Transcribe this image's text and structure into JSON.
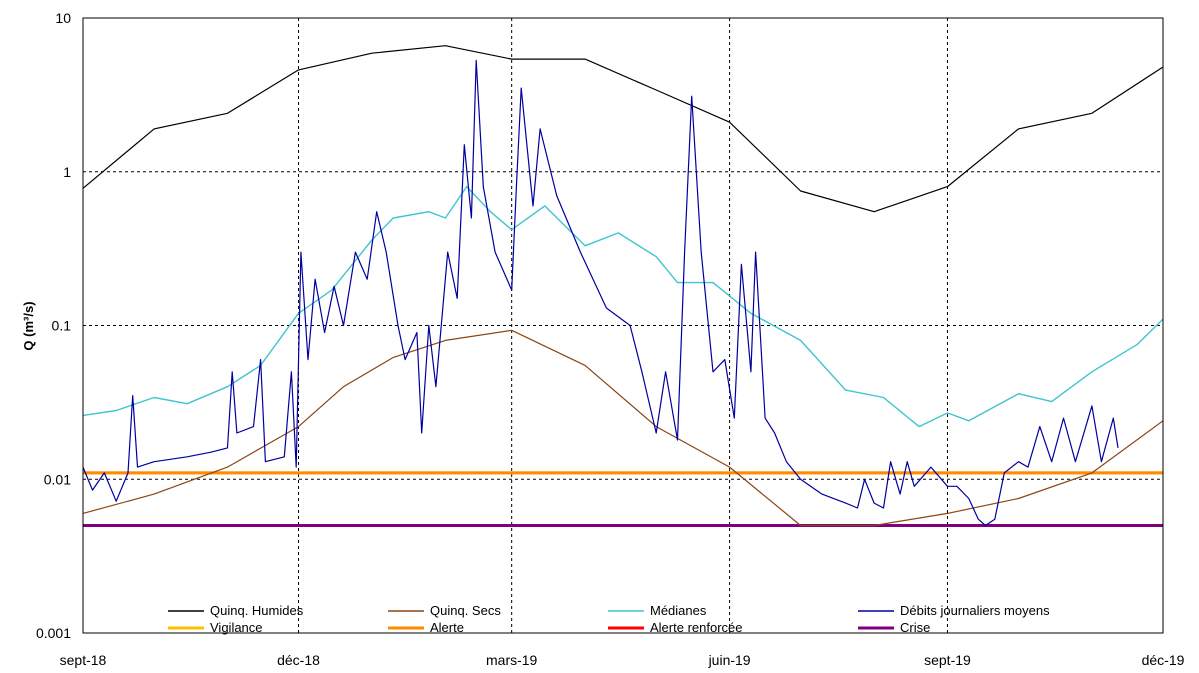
{
  "chart_data": {
    "type": "line",
    "title": "",
    "xlabel": "",
    "ylabel": "Q (m³/s)",
    "y_scale": "log",
    "ylim": [
      0.001,
      10
    ],
    "xlim": [
      "2018-09-01",
      "2019-12-01"
    ],
    "grid": true,
    "legend_position": "bottom",
    "y_ticks": [
      {
        "value": 10,
        "label": "10"
      },
      {
        "value": 1,
        "label": "1"
      },
      {
        "value": 0.1,
        "label": "0.1"
      },
      {
        "value": 0.01,
        "label": "0.01"
      },
      {
        "value": 0.001,
        "label": "0.001"
      }
    ],
    "x_ticks": [
      {
        "value": "2018-09-01",
        "label": "sept-18"
      },
      {
        "value": "2018-12-01",
        "label": "déc-18"
      },
      {
        "value": "2019-03-01",
        "label": "mars-19"
      },
      {
        "value": "2019-06-01",
        "label": "juin-19"
      },
      {
        "value": "2019-09-01",
        "label": "sept-19"
      },
      {
        "value": "2019-12-01",
        "label": "déc-19"
      }
    ],
    "series": [
      {
        "name": "Quinq. Humides",
        "color": "#000000",
        "width": 1.2,
        "points": [
          [
            "2018-09-01",
            0.78
          ],
          [
            "2018-10-01",
            1.9
          ],
          [
            "2018-11-01",
            2.4
          ],
          [
            "2018-12-01",
            4.6
          ],
          [
            "2019-01-01",
            5.9
          ],
          [
            "2019-02-01",
            6.6
          ],
          [
            "2019-03-01",
            5.4
          ],
          [
            "2019-04-01",
            5.4
          ],
          [
            "2019-05-01",
            3.4
          ],
          [
            "2019-06-01",
            2.1
          ],
          [
            "2019-07-01",
            0.75
          ],
          [
            "2019-08-01",
            0.55
          ],
          [
            "2019-09-01",
            0.8
          ],
          [
            "2019-10-01",
            1.9
          ],
          [
            "2019-11-01",
            2.4
          ],
          [
            "2019-12-01",
            4.8
          ]
        ]
      },
      {
        "name": "Quinq. Secs",
        "color": "#8b4513",
        "width": 1.2,
        "points": [
          [
            "2018-09-01",
            0.006
          ],
          [
            "2018-10-01",
            0.008
          ],
          [
            "2018-11-01",
            0.012
          ],
          [
            "2018-12-01",
            0.022
          ],
          [
            "2018-12-20",
            0.04
          ],
          [
            "2019-01-10",
            0.062
          ],
          [
            "2019-02-01",
            0.08
          ],
          [
            "2019-03-01",
            0.093
          ],
          [
            "2019-04-01",
            0.055
          ],
          [
            "2019-05-01",
            0.022
          ],
          [
            "2019-06-01",
            0.012
          ],
          [
            "2019-07-01",
            0.005
          ],
          [
            "2019-08-01",
            0.005
          ],
          [
            "2019-09-01",
            0.006
          ],
          [
            "2019-10-01",
            0.0075
          ],
          [
            "2019-11-01",
            0.011
          ],
          [
            "2019-12-01",
            0.024
          ]
        ]
      },
      {
        "name": "Médianes",
        "color": "#40c4d0",
        "width": 1.4,
        "points": [
          [
            "2018-09-01",
            0.026
          ],
          [
            "2018-09-15",
            0.028
          ],
          [
            "2018-10-01",
            0.034
          ],
          [
            "2018-10-15",
            0.031
          ],
          [
            "2018-11-01",
            0.04
          ],
          [
            "2018-11-15",
            0.055
          ],
          [
            "2018-12-01",
            0.12
          ],
          [
            "2018-12-15",
            0.17
          ],
          [
            "2019-01-01",
            0.36
          ],
          [
            "2019-01-10",
            0.5
          ],
          [
            "2019-01-25",
            0.55
          ],
          [
            "2019-02-01",
            0.5
          ],
          [
            "2019-02-10",
            0.8
          ],
          [
            "2019-02-20",
            0.55
          ],
          [
            "2019-03-01",
            0.42
          ],
          [
            "2019-03-15",
            0.6
          ],
          [
            "2019-04-01",
            0.33
          ],
          [
            "2019-04-15",
            0.4
          ],
          [
            "2019-05-01",
            0.28
          ],
          [
            "2019-05-10",
            0.19
          ],
          [
            "2019-05-25",
            0.19
          ],
          [
            "2019-06-10",
            0.12
          ],
          [
            "2019-07-01",
            0.08
          ],
          [
            "2019-07-20",
            0.038
          ],
          [
            "2019-08-05",
            0.034
          ],
          [
            "2019-08-20",
            0.022
          ],
          [
            "2019-09-01",
            0.027
          ],
          [
            "2019-09-10",
            0.024
          ],
          [
            "2019-10-01",
            0.036
          ],
          [
            "2019-10-15",
            0.032
          ],
          [
            "2019-11-01",
            0.05
          ],
          [
            "2019-11-20",
            0.075
          ],
          [
            "2019-12-01",
            0.11
          ]
        ]
      },
      {
        "name": "Débits journaliers moyens",
        "color": "#0000a0",
        "width": 1.2,
        "points": [
          [
            "2018-09-01",
            0.012
          ],
          [
            "2018-09-05",
            0.0085
          ],
          [
            "2018-09-10",
            0.011
          ],
          [
            "2018-09-15",
            0.0072
          ],
          [
            "2018-09-20",
            0.011
          ],
          [
            "2018-09-22",
            0.035
          ],
          [
            "2018-09-24",
            0.012
          ],
          [
            "2018-10-01",
            0.013
          ],
          [
            "2018-10-15",
            0.014
          ],
          [
            "2018-10-25",
            0.015
          ],
          [
            "2018-11-01",
            0.016
          ],
          [
            "2018-11-03",
            0.05
          ],
          [
            "2018-11-05",
            0.02
          ],
          [
            "2018-11-12",
            0.022
          ],
          [
            "2018-11-15",
            0.06
          ],
          [
            "2018-11-17",
            0.013
          ],
          [
            "2018-11-25",
            0.014
          ],
          [
            "2018-11-28",
            0.05
          ],
          [
            "2018-11-30",
            0.012
          ],
          [
            "2018-12-02",
            0.3
          ],
          [
            "2018-12-05",
            0.06
          ],
          [
            "2018-12-08",
            0.2
          ],
          [
            "2018-12-12",
            0.09
          ],
          [
            "2018-12-16",
            0.18
          ],
          [
            "2018-12-20",
            0.1
          ],
          [
            "2018-12-25",
            0.3
          ],
          [
            "2018-12-30",
            0.2
          ],
          [
            "2019-01-03",
            0.55
          ],
          [
            "2019-01-07",
            0.3
          ],
          [
            "2019-01-12",
            0.1
          ],
          [
            "2019-01-15",
            0.06
          ],
          [
            "2019-01-20",
            0.09
          ],
          [
            "2019-01-22",
            0.02
          ],
          [
            "2019-01-25",
            0.1
          ],
          [
            "2019-01-28",
            0.04
          ],
          [
            "2019-02-02",
            0.3
          ],
          [
            "2019-02-06",
            0.15
          ],
          [
            "2019-02-09",
            1.5
          ],
          [
            "2019-02-12",
            0.5
          ],
          [
            "2019-02-14",
            5.3
          ],
          [
            "2019-02-17",
            0.8
          ],
          [
            "2019-02-22",
            0.3
          ],
          [
            "2019-03-01",
            0.17
          ],
          [
            "2019-03-03",
            0.8
          ],
          [
            "2019-03-05",
            3.5
          ],
          [
            "2019-03-10",
            0.6
          ],
          [
            "2019-03-13",
            1.9
          ],
          [
            "2019-03-20",
            0.7
          ],
          [
            "2019-03-30",
            0.3
          ],
          [
            "2019-04-10",
            0.13
          ],
          [
            "2019-04-20",
            0.1
          ],
          [
            "2019-04-25",
            0.05
          ],
          [
            "2019-05-01",
            0.02
          ],
          [
            "2019-05-05",
            0.05
          ],
          [
            "2019-05-10",
            0.018
          ],
          [
            "2019-05-13",
            0.3
          ],
          [
            "2019-05-16",
            3.1
          ],
          [
            "2019-05-20",
            0.3
          ],
          [
            "2019-05-25",
            0.05
          ],
          [
            "2019-05-30",
            0.06
          ],
          [
            "2019-06-03",
            0.025
          ],
          [
            "2019-06-06",
            0.25
          ],
          [
            "2019-06-10",
            0.05
          ],
          [
            "2019-06-12",
            0.3
          ],
          [
            "2019-06-16",
            0.025
          ],
          [
            "2019-06-20",
            0.02
          ],
          [
            "2019-06-25",
            0.013
          ],
          [
            "2019-07-01",
            0.01
          ],
          [
            "2019-07-10",
            0.008
          ],
          [
            "2019-07-20",
            0.007
          ],
          [
            "2019-07-25",
            0.0065
          ],
          [
            "2019-07-28",
            0.01
          ],
          [
            "2019-08-01",
            0.007
          ],
          [
            "2019-08-05",
            0.0065
          ],
          [
            "2019-08-08",
            0.013
          ],
          [
            "2019-08-12",
            0.008
          ],
          [
            "2019-08-15",
            0.013
          ],
          [
            "2019-08-18",
            0.009
          ],
          [
            "2019-08-25",
            0.012
          ],
          [
            "2019-09-01",
            0.009
          ],
          [
            "2019-09-05",
            0.009
          ],
          [
            "2019-09-10",
            0.0075
          ],
          [
            "2019-09-14",
            0.0055
          ],
          [
            "2019-09-17",
            0.005
          ],
          [
            "2019-09-21",
            0.0055
          ],
          [
            "2019-09-25",
            0.011
          ],
          [
            "2019-10-01",
            0.013
          ],
          [
            "2019-10-05",
            0.012
          ],
          [
            "2019-10-10",
            0.022
          ],
          [
            "2019-10-15",
            0.013
          ],
          [
            "2019-10-20",
            0.025
          ],
          [
            "2019-10-25",
            0.013
          ],
          [
            "2019-11-01",
            0.03
          ],
          [
            "2019-11-05",
            0.013
          ],
          [
            "2019-11-10",
            0.025
          ],
          [
            "2019-11-12",
            0.016
          ]
        ]
      },
      {
        "name": "Vigilance",
        "color": "#ffc000",
        "width": 3,
        "points": [
          [
            "2018-09-01",
            0.011
          ],
          [
            "2019-12-01",
            0.011
          ]
        ]
      },
      {
        "name": "Alerte",
        "color": "#ff8c00",
        "width": 3,
        "points": [
          [
            "2018-09-01",
            0.011
          ],
          [
            "2019-12-01",
            0.011
          ]
        ]
      },
      {
        "name": "Alerte renforcée",
        "color": "#ff0000",
        "width": 3,
        "points": []
      },
      {
        "name": "Crise",
        "color": "#800080",
        "width": 3,
        "points": [
          [
            "2018-09-01",
            0.005
          ],
          [
            "2019-12-01",
            0.005
          ]
        ]
      }
    ]
  }
}
